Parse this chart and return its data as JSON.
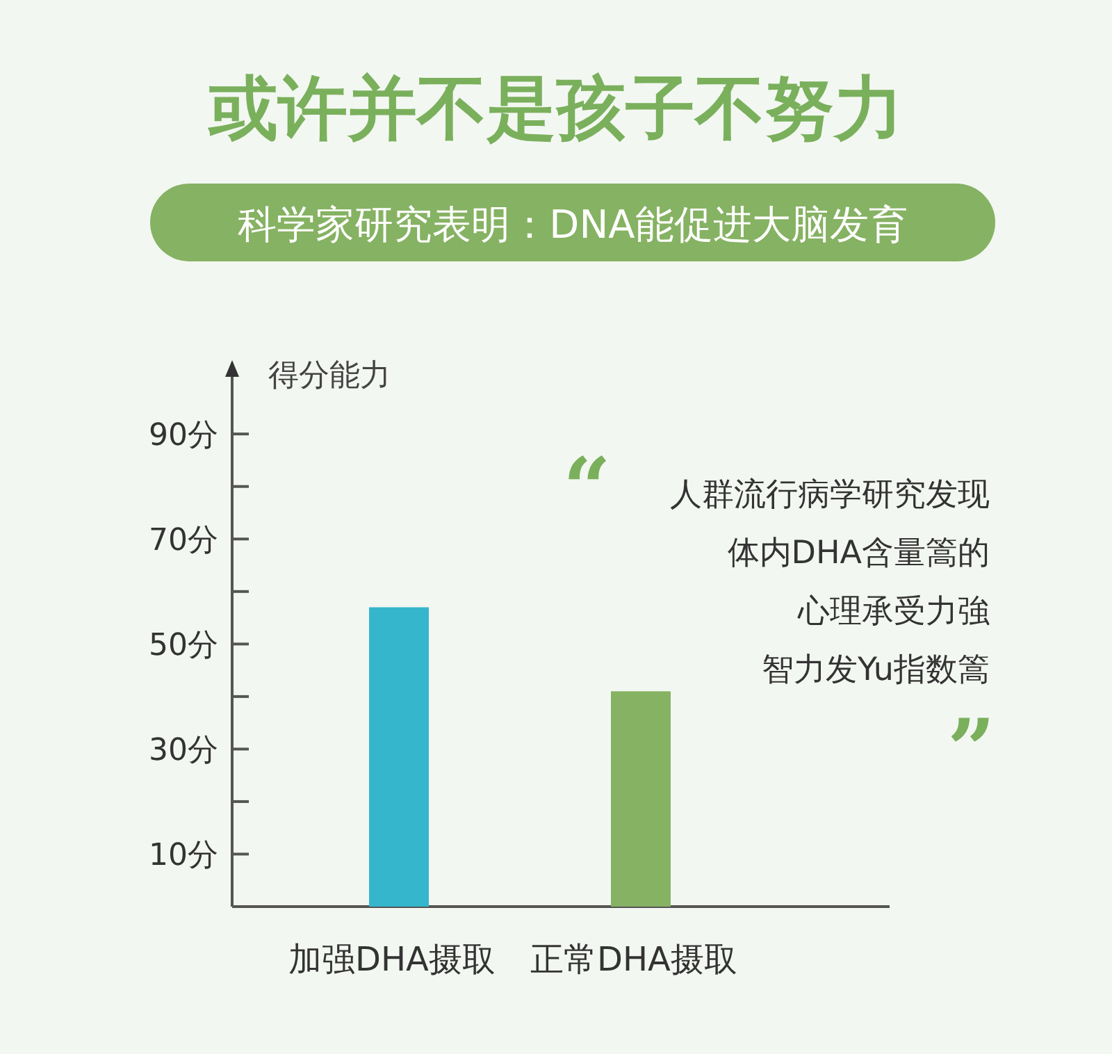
{
  "chart_data": {
    "type": "bar",
    "title": "或许并不是孩子不努力",
    "subtitle": "科学家研究表明：DNA能促进大脑发育",
    "ylabel": "得分能力",
    "categories": [
      "加强DHA摄取",
      "正常DHA摄取"
    ],
    "values": [
      57,
      41
    ],
    "colors": [
      "#35b6cc",
      "#86b263"
    ],
    "ylim": [
      0,
      103
    ],
    "yticks": [
      {
        "value": 10,
        "label": "10分"
      },
      {
        "value": 20,
        "label": null
      },
      {
        "value": 30,
        "label": "30分"
      },
      {
        "value": 40,
        "label": null
      },
      {
        "value": 50,
        "label": "50分"
      },
      {
        "value": 60,
        "label": null
      },
      {
        "value": 70,
        "label": "70分"
      },
      {
        "value": 80,
        "label": null
      },
      {
        "value": 90,
        "label": "90分"
      }
    ],
    "grid": false,
    "annotations": [
      "“",
      "人群流行病学研究发现",
      "体内DHA含量篙的",
      "心理承受力強",
      "智力发Yu指数篙",
      "”"
    ]
  }
}
